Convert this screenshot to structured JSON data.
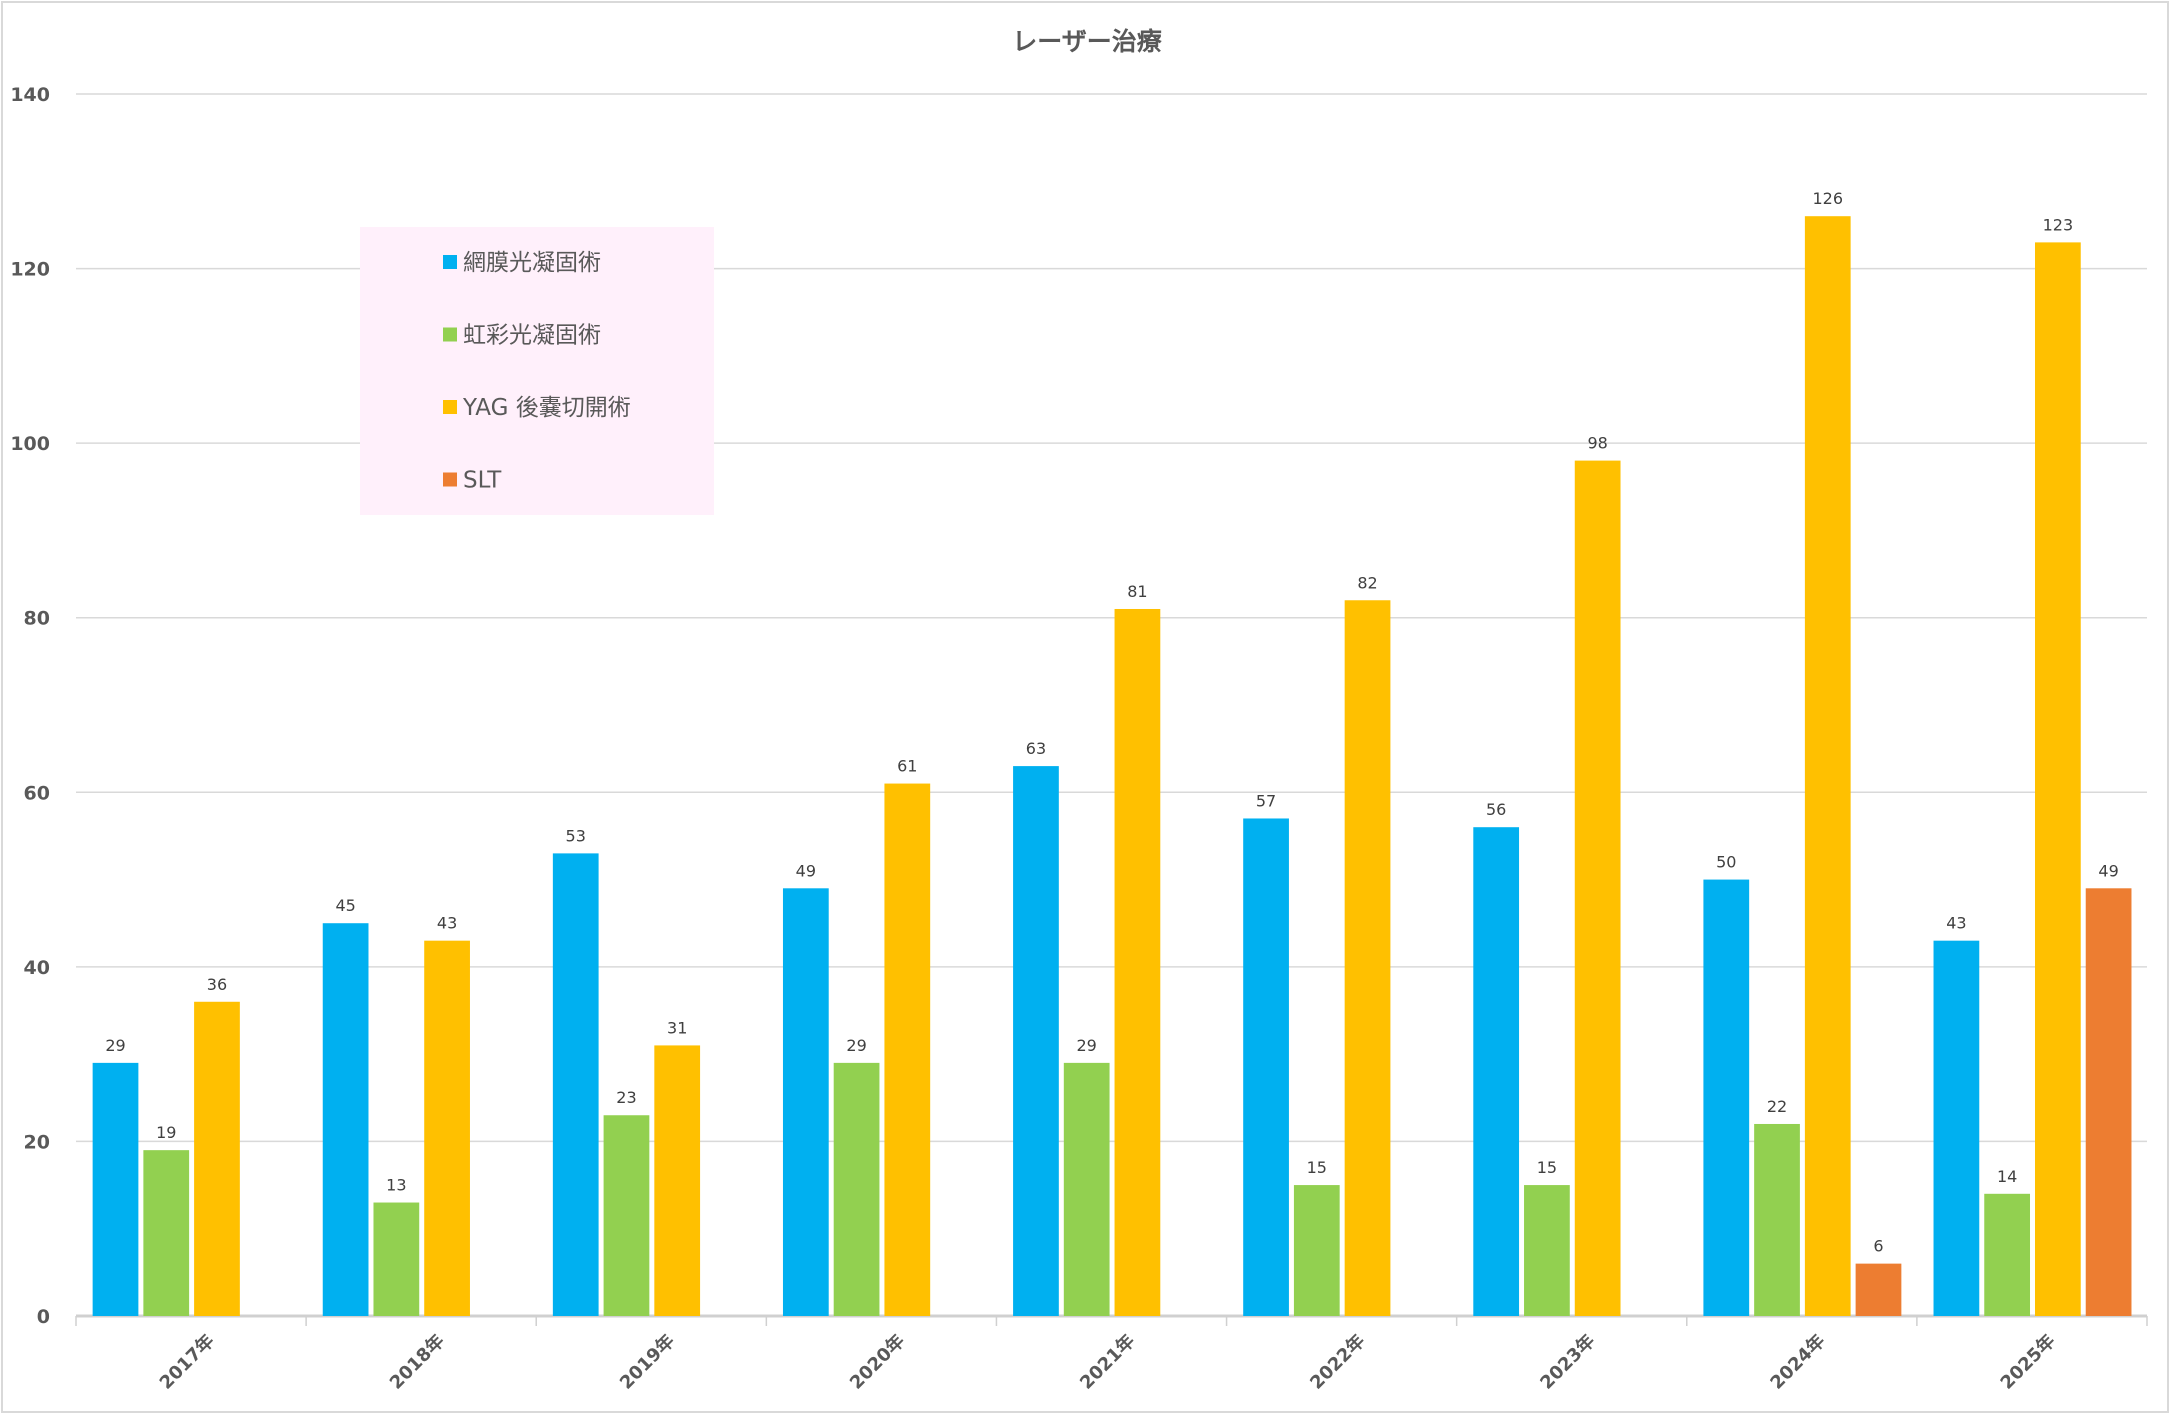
{
  "chart_data": {
    "type": "bar",
    "title": "レーザー治療",
    "xlabel": "",
    "ylabel": "",
    "ylim": [
      0,
      140
    ],
    "yticks": [
      0,
      20,
      40,
      60,
      80,
      100,
      120,
      140
    ],
    "grid": true,
    "legend_placement": "top-left (inside plot)",
    "legend_background": "#fff0fb",
    "categories": [
      "2017年",
      "2018年",
      "2019年",
      "2020年",
      "2021年",
      "2022年",
      "2023年",
      "2024年",
      "2025年"
    ],
    "series": [
      {
        "name": "網膜光凝固術",
        "color": "#00b0f0",
        "values": [
          29,
          45,
          53,
          49,
          63,
          57,
          56,
          50,
          43
        ]
      },
      {
        "name": "虹彩光凝固術",
        "color": "#92d050",
        "values": [
          19,
          13,
          23,
          29,
          29,
          15,
          15,
          22,
          14
        ]
      },
      {
        "name": "YAG 後嚢切開術",
        "color": "#ffc000",
        "values": [
          36,
          43,
          31,
          61,
          81,
          82,
          98,
          126,
          123
        ]
      },
      {
        "name": "SLT",
        "color": "#ed7d31",
        "values": [
          null,
          null,
          null,
          null,
          null,
          null,
          null,
          6,
          49
        ]
      }
    ]
  }
}
